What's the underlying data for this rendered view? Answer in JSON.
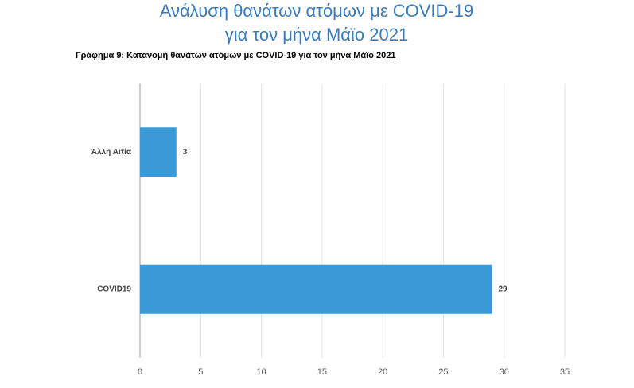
{
  "chart_data": {
    "type": "hbar",
    "title": [
      "Ανάλυση θανάτων ατόμων με COVID-19",
      "για τον μήνα Μάϊο 2021"
    ],
    "subtitle": "Γράφημα 9: Κατανομή θανάτων ατόμων με COVID-19 για τον μήνα Μάϊο 2021",
    "categories": [
      "Άλλη Αιτία",
      "COVID19"
    ],
    "values": [
      3,
      29
    ],
    "color": "#3a9ad6",
    "xlim": [
      0,
      35
    ],
    "xticks": [
      0,
      5,
      10,
      15,
      20,
      25,
      30,
      35
    ],
    "grid": true
  }
}
